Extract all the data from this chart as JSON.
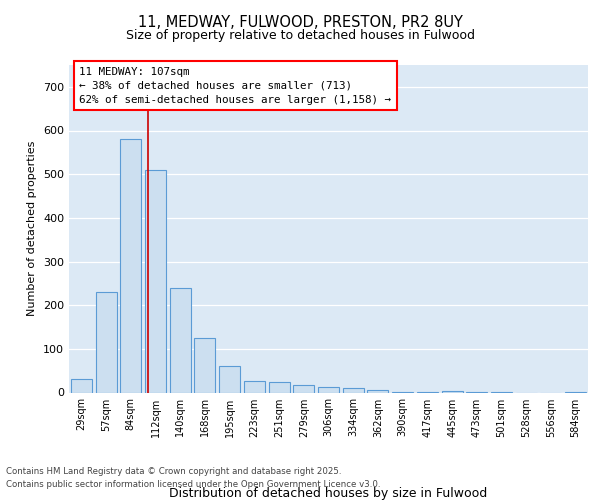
{
  "title1": "11, MEDWAY, FULWOOD, PRESTON, PR2 8UY",
  "title2": "Size of property relative to detached houses in Fulwood",
  "xlabel": "Distribution of detached houses by size in Fulwood",
  "ylabel": "Number of detached properties",
  "categories": [
    "29sqm",
    "57sqm",
    "84sqm",
    "112sqm",
    "140sqm",
    "168sqm",
    "195sqm",
    "223sqm",
    "251sqm",
    "279sqm",
    "306sqm",
    "334sqm",
    "362sqm",
    "390sqm",
    "417sqm",
    "445sqm",
    "473sqm",
    "501sqm",
    "528sqm",
    "556sqm",
    "584sqm"
  ],
  "values": [
    30,
    230,
    580,
    510,
    240,
    125,
    60,
    27,
    25,
    18,
    12,
    10,
    5,
    2,
    2,
    4,
    2,
    1,
    0,
    0,
    2
  ],
  "bar_color": "#ccdff0",
  "bar_edge_color": "#5b9bd5",
  "vline_x": 2.7,
  "vline_color": "#cc0000",
  "property_label": "11 MEDWAY: 107sqm",
  "annotation_line1": "← 38% of detached houses are smaller (713)",
  "annotation_line2": "62% of semi-detached houses are larger (1,158) →",
  "footer1": "Contains HM Land Registry data © Crown copyright and database right 2025.",
  "footer2": "Contains public sector information licensed under the Open Government Licence v3.0.",
  "ylim": [
    0,
    750
  ],
  "yticks": [
    0,
    100,
    200,
    300,
    400,
    500,
    600,
    700
  ],
  "plot_bg_color": "#dce9f5"
}
